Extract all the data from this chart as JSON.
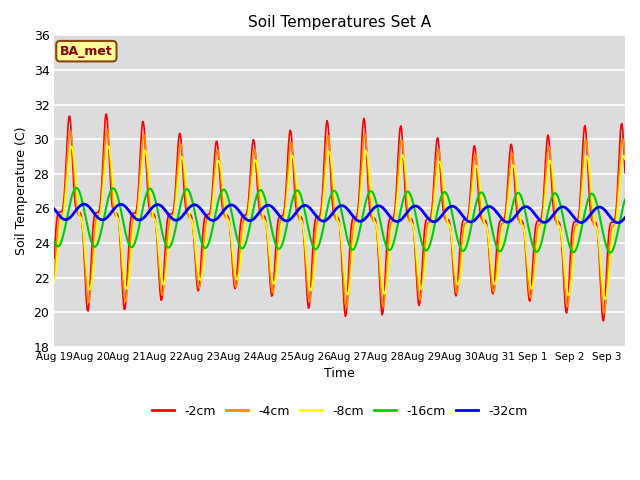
{
  "title": "Soil Temperatures Set A",
  "xlabel": "Time",
  "ylabel": "Soil Temperature (C)",
  "ylim": [
    18,
    36
  ],
  "yticks": [
    18,
    20,
    22,
    24,
    26,
    28,
    30,
    32,
    34,
    36
  ],
  "background_color": "#dcdcdc",
  "fig_background": "#ffffff",
  "annotation_text": "BA_met",
  "annotation_fc": "#ffff99",
  "annotation_ec": "#8B4513",
  "annotation_tc": "#8B0000",
  "legend_entries": [
    "-2cm",
    "-4cm",
    "-8cm",
    "-16cm",
    "-32cm"
  ],
  "line_colors": [
    "#ff0000",
    "#ff8800",
    "#ffff00",
    "#00cc00",
    "#0000ff"
  ],
  "line_widths": [
    1.2,
    1.2,
    1.2,
    1.5,
    2.0
  ],
  "xtick_labels": [
    "Aug 19",
    "Aug 20",
    "Aug 21",
    "Aug 22",
    "Aug 23",
    "Aug 24",
    "Aug 25",
    "Aug 26",
    "Aug 27",
    "Aug 28",
    "Aug 29",
    "Aug 30",
    "Aug 31",
    "Sep 1",
    "Sep 2",
    "Sep 3"
  ],
  "grid_color": "#ffffff",
  "n_days": 15.5,
  "samples_per_day": 48
}
